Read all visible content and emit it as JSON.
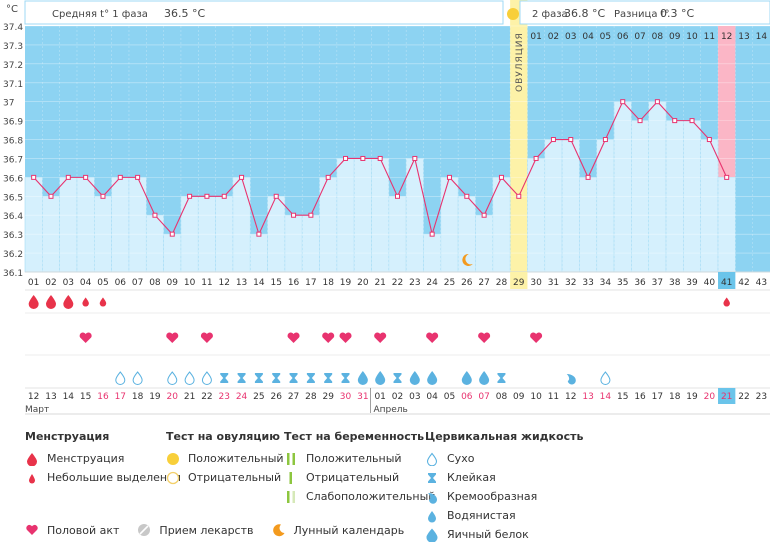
{
  "header": {
    "unit": "°C",
    "phase1_label": "Средняя t° 1 фаза",
    "phase1_value": "36.5 °C",
    "phase2_label": "2 фаза",
    "phase2_value": "36.8 °C",
    "diff_label": "Разница t°",
    "diff_value": "0.3 °C",
    "ovulation_label": "ОВУЛЯЦИЯ"
  },
  "months": {
    "first": "Март",
    "second": "Апрель"
  },
  "colors": {
    "sky": "#8dd3f2",
    "area": "#d5f0fd",
    "ovulation": "#fdf2a8",
    "highlight": "#fbb6c6",
    "line": "#e8336f",
    "drop": "#e8334a",
    "heart": "#e8336f",
    "mucus": "#5bb2e0",
    "today": "#6ac4ea"
  },
  "chart_data": {
    "type": "line",
    "ylabel": "°C",
    "ylim": [
      36.1,
      37.4
    ],
    "yticks": [
      "37.4",
      "37.3",
      "37.2",
      "37.1",
      "37",
      "36.9",
      "36.8",
      "36.7",
      "36.6",
      "36.5",
      "36.4",
      "36.3",
      "36.2",
      "36.1"
    ],
    "cycle_days": [
      "01",
      "02",
      "03",
      "04",
      "05",
      "06",
      "07",
      "08",
      "09",
      "10",
      "11",
      "12",
      "13",
      "14",
      "15",
      "16",
      "17",
      "18",
      "19",
      "20",
      "21",
      "22",
      "23",
      "24",
      "25",
      "26",
      "27",
      "28",
      "29",
      "30",
      "31",
      "32",
      "33",
      "34",
      "35",
      "36",
      "37",
      "38",
      "39",
      "40",
      "41",
      "42",
      "43"
    ],
    "post_ovulation_days": [
      "01",
      "02",
      "03",
      "04",
      "05",
      "06",
      "07",
      "08",
      "09",
      "10",
      "11",
      "12",
      "13",
      "14"
    ],
    "temperatures": [
      36.6,
      36.5,
      36.6,
      36.6,
      36.5,
      36.6,
      36.6,
      36.4,
      36.3,
      36.5,
      36.5,
      36.5,
      36.6,
      36.3,
      36.5,
      36.4,
      36.4,
      36.6,
      36.7,
      36.7,
      36.7,
      36.5,
      36.7,
      36.3,
      36.6,
      36.5,
      36.4,
      36.6,
      36.5,
      36.7,
      36.8,
      36.8,
      36.6,
      36.8,
      37.0,
      36.9,
      37.0,
      36.9,
      36.9,
      36.8,
      36.6,
      null,
      null
    ],
    "ovulation_day": 29,
    "highlight_day": 41,
    "calendar_dates": [
      "12",
      "13",
      "14",
      "15",
      "16",
      "17",
      "18",
      "19",
      "20",
      "21",
      "22",
      "23",
      "24",
      "25",
      "26",
      "27",
      "28",
      "29",
      "30",
      "31",
      "01",
      "02",
      "03",
      "04",
      "05",
      "06",
      "07",
      "08",
      "09",
      "10",
      "11",
      "12",
      "13",
      "14",
      "15",
      "16",
      "17",
      "18",
      "19",
      "20",
      "21",
      "22",
      "23"
    ],
    "weekend_days": [
      4,
      5,
      8,
      11,
      12,
      18,
      19,
      25,
      26,
      32,
      33,
      39,
      40
    ],
    "menstruation": [
      1,
      1,
      1,
      2,
      2,
      0,
      0,
      0,
      0,
      0,
      0,
      0,
      0,
      0,
      0,
      0,
      0,
      0,
      0,
      0,
      0,
      0,
      0,
      0,
      0,
      0,
      0,
      0,
      0,
      0,
      0,
      0,
      0,
      0,
      0,
      0,
      0,
      0,
      0,
      0,
      2,
      0,
      0
    ],
    "intercourse_days": [
      4,
      9,
      11,
      16,
      18,
      19,
      21,
      24,
      27,
      30
    ],
    "mucus": [
      "",
      "",
      "",
      "",
      "",
      "dry",
      "dry",
      "",
      "dry",
      "dry",
      "dry",
      "sticky",
      "sticky",
      "sticky",
      "sticky",
      "sticky",
      "sticky",
      "sticky",
      "sticky",
      "egg",
      "egg",
      "sticky",
      "egg",
      "egg",
      "",
      "egg",
      "egg",
      "sticky",
      "",
      "",
      "",
      "creamy",
      "",
      "dry",
      "",
      "",
      "",
      "",
      "",
      "",
      "",
      "",
      ""
    ],
    "moon_day": 26
  },
  "legend": {
    "menstruation": {
      "title": "Менструация",
      "items": [
        "Менструация",
        "Небольшие выделения"
      ]
    },
    "ovulation_test": {
      "title": "Тест на овуляцию",
      "items": [
        "Положительный",
        "Отрицательный"
      ]
    },
    "pregnancy_test": {
      "title": "Тест на беременность",
      "items": [
        "Положительный",
        "Отрицательный",
        "Слабоположительный"
      ]
    },
    "cervical": {
      "title": "Цервикальная жидкость",
      "items": [
        "Сухо",
        "Клейкая",
        "Кремообразная",
        "Водянистая",
        "Яичный белок"
      ]
    },
    "bottom": [
      "Половой акт",
      "Прием лекарств",
      "Лунный календарь"
    ]
  }
}
